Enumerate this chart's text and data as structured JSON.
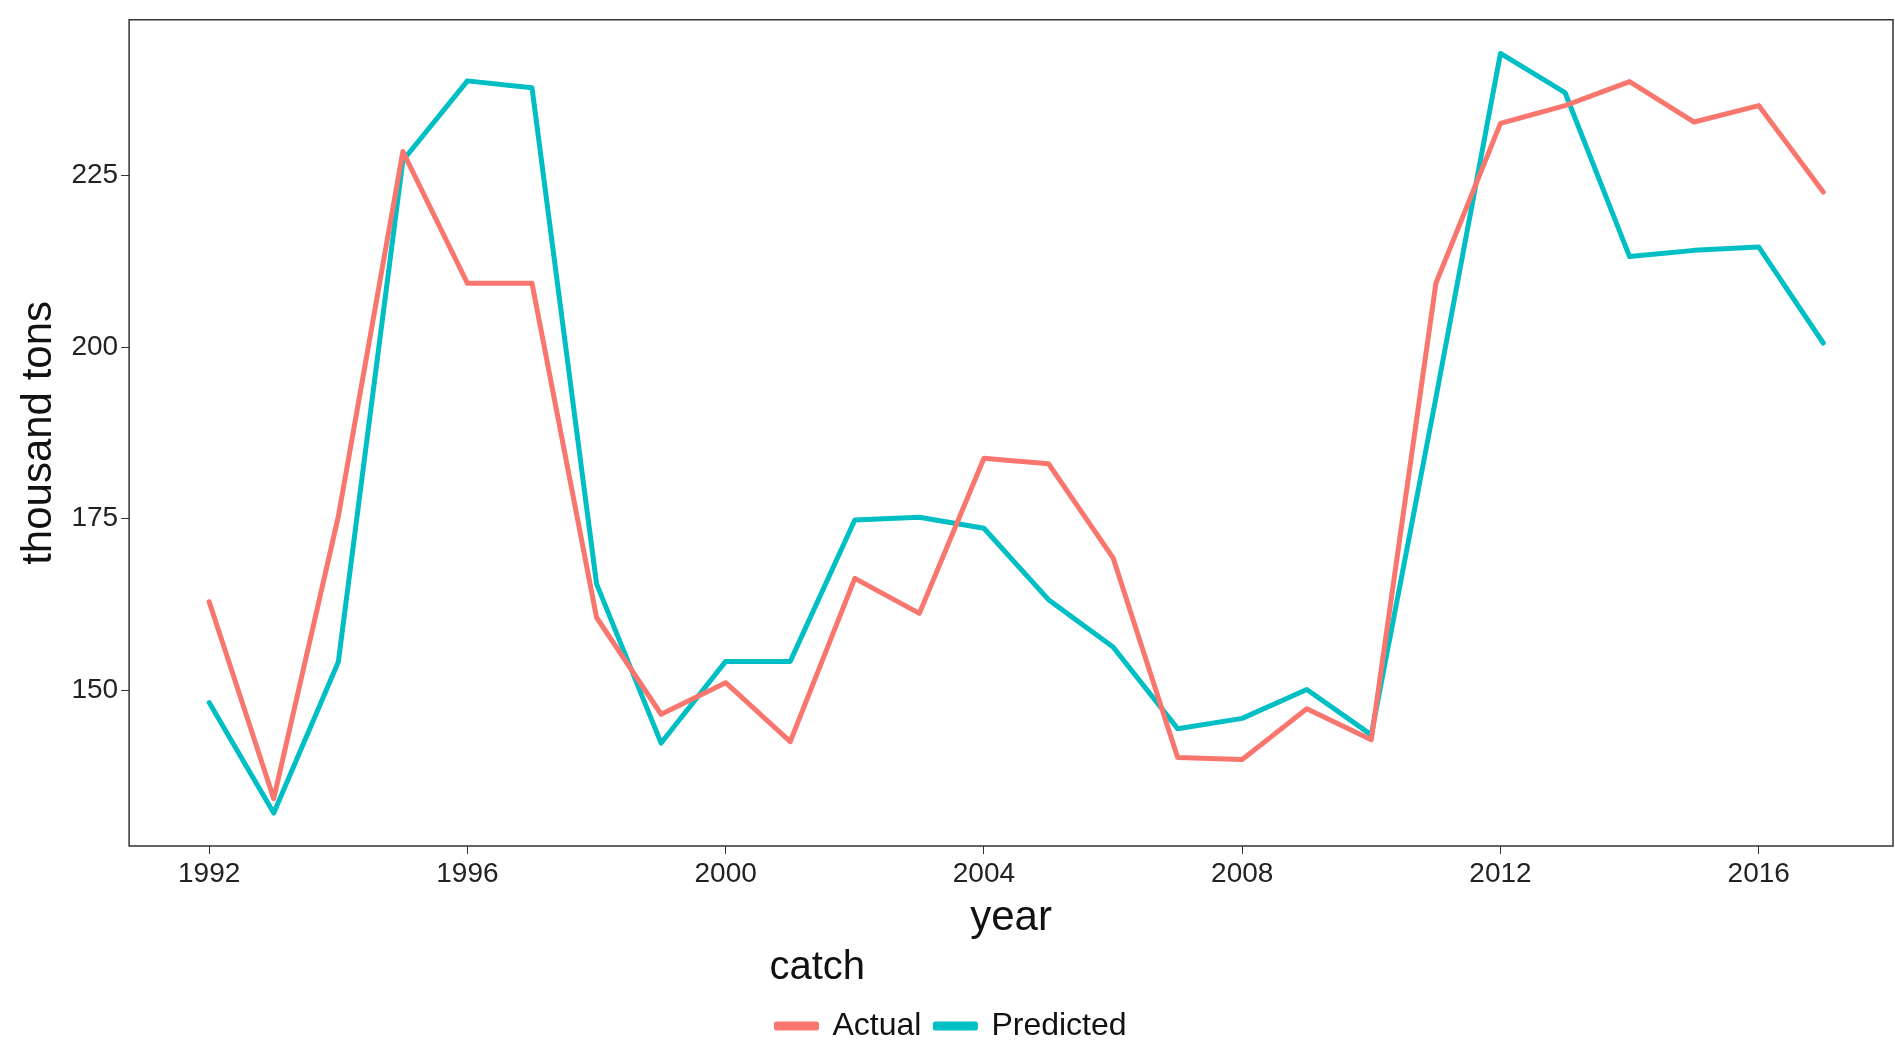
{
  "chart_data": {
    "type": "line",
    "xlabel": "year",
    "ylabel": "thousand tons",
    "legend_title": "catch",
    "legend": "bottom",
    "grid": false,
    "marker": "none",
    "line_style": "solid",
    "x": [
      1992,
      1993,
      1994,
      1995,
      1996,
      1997,
      1998,
      1999,
      2000,
      2001,
      2002,
      2003,
      2004,
      2005,
      2006,
      2007,
      2008,
      2009,
      2010,
      2011,
      2012,
      2013,
      2014,
      2015,
      2016,
      2017
    ],
    "xlim": [
      1990.76,
      2018.08
    ],
    "xticks": [
      1992,
      1996,
      2000,
      2004,
      2008,
      2012,
      2016
    ],
    "ylim": [
      127.3,
      247.7
    ],
    "yticks": [
      150,
      175,
      200,
      225
    ],
    "series": [
      {
        "name": "Actual",
        "color": "#f8766d",
        "values": [
          162.9,
          134.2,
          175.3,
          228.5,
          209.3,
          209.3,
          160.6,
          146.5,
          151.1,
          142.5,
          166.3,
          161.2,
          183.8,
          183.0,
          169.3,
          140.2,
          139.9,
          147.3,
          142.8,
          209.3,
          232.6,
          235.2,
          238.7,
          232.8,
          235.2,
          222.6
        ]
      },
      {
        "name": "Predicted",
        "color": "#00bfc4",
        "values": [
          148.2,
          132.1,
          154.1,
          227.2,
          238.8,
          237.8,
          165.5,
          142.3,
          154.2,
          154.2,
          174.8,
          175.2,
          173.6,
          163.2,
          156.3,
          144.4,
          145.9,
          150.1,
          143.5,
          192.6,
          242.8,
          237.1,
          213.2,
          214.1,
          214.6,
          200.6
        ]
      }
    ]
  }
}
